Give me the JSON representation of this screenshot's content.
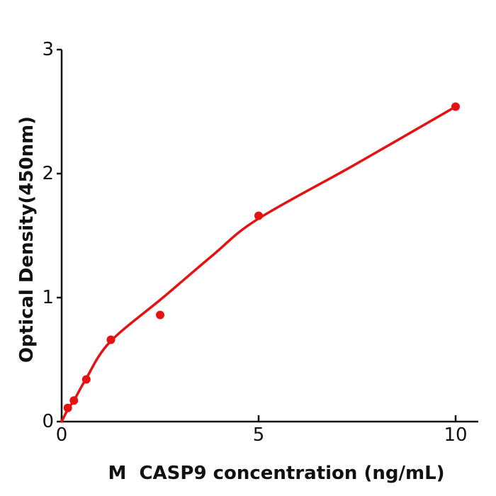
{
  "chart_data": {
    "type": "scatter",
    "title": "",
    "xlabel": "M  CASP9 concentration (ng/mL)",
    "ylabel": "Optical Density(450nm)",
    "xlim": [
      0,
      10.6
    ],
    "ylim": [
      0,
      3
    ],
    "grid": false,
    "legend": null,
    "x_ticks": [
      {
        "value": 0,
        "label": "0"
      },
      {
        "value": 5,
        "label": "5"
      },
      {
        "value": 10,
        "label": "10"
      }
    ],
    "y_ticks": [
      {
        "value": 0,
        "label": "0"
      },
      {
        "value": 1,
        "label": "1"
      },
      {
        "value": 2,
        "label": "2"
      },
      {
        "value": 3,
        "label": "3"
      }
    ],
    "series": [
      {
        "name": "standard-points",
        "type": "scatter",
        "color": "#e51212",
        "points": [
          {
            "x": 0.156,
            "y": 0.11
          },
          {
            "x": 0.312,
            "y": 0.17
          },
          {
            "x": 0.625,
            "y": 0.34
          },
          {
            "x": 1.25,
            "y": 0.66
          },
          {
            "x": 2.5,
            "y": 0.86
          },
          {
            "x": 5,
            "y": 1.66
          },
          {
            "x": 10,
            "y": 2.54
          }
        ]
      },
      {
        "name": "fit-curve",
        "type": "line",
        "color": "#e51212",
        "points": [
          {
            "x": 0,
            "y": 0
          },
          {
            "x": 0.16,
            "y": 0.1
          },
          {
            "x": 0.32,
            "y": 0.175
          },
          {
            "x": 0.61,
            "y": 0.34
          },
          {
            "x": 1.22,
            "y": 0.64
          },
          {
            "x": 2.57,
            "y": 1.0
          },
          {
            "x": 3.83,
            "y": 1.34
          },
          {
            "x": 4.96,
            "y": 1.63
          },
          {
            "x": 7.43,
            "y": 2.07
          },
          {
            "x": 10,
            "y": 2.54
          }
        ]
      }
    ]
  },
  "colors": {
    "accent": "#e51212",
    "axis": "#111111",
    "background": "#ffffff"
  }
}
